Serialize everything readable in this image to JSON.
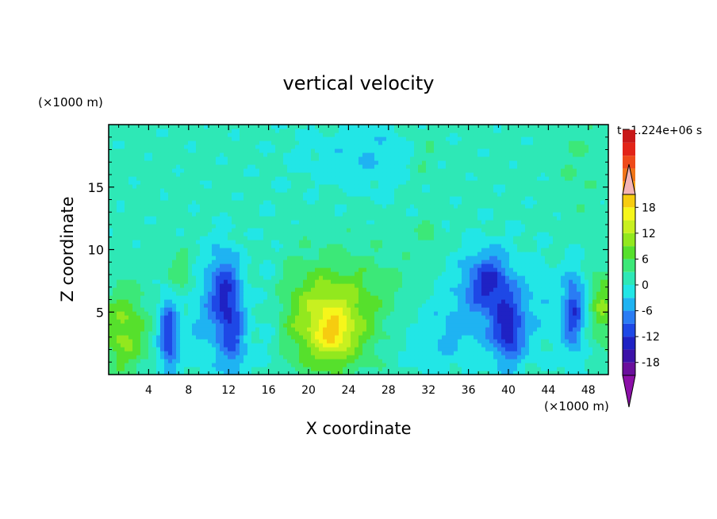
{
  "chart_data": {
    "type": "heatmap",
    "title": "vertical velocity",
    "xlabel": "X coordinate",
    "ylabel": "Z coordinate",
    "x_unit": "(×1000 m)",
    "y_unit": "(×1000 m)",
    "time_label": "t=1.224e+06 s",
    "xlim": [
      0,
      50
    ],
    "ylim": [
      0,
      20
    ],
    "x_ticks": [
      4,
      8,
      12,
      16,
      20,
      24,
      28,
      32,
      36,
      40,
      44,
      48
    ],
    "y_ticks": [
      5,
      10,
      15
    ],
    "colorbar": {
      "min": -21,
      "max": 21,
      "step": 3,
      "tick_values": [
        18,
        12,
        6,
        0,
        -6,
        -12,
        -18
      ],
      "colors": [
        "#6a0f9c",
        "#3c12a8",
        "#1f22c4",
        "#1e48e6",
        "#2a7cf4",
        "#1fb3f2",
        "#22e6e6",
        "#2ee8b6",
        "#3ce878",
        "#56e02c",
        "#92e81e",
        "#c8f020",
        "#f6f61a",
        "#f6cc10",
        "#f6a010",
        "#f07418",
        "#ee4a1a",
        "#e22418",
        "#c81818"
      ],
      "over_color": "#f4b4b4",
      "under_color": "#8c10a8"
    },
    "features": [
      {
        "x": 22,
        "z": 4,
        "sx": 3.0,
        "sz": 2.6,
        "value": 12
      },
      {
        "x": 22.5,
        "z": 3.2,
        "sx": 1.2,
        "sz": 1.2,
        "value": 6
      },
      {
        "x": 24,
        "z": 7,
        "sx": 6,
        "sz": 2.5,
        "value": 3
      },
      {
        "x": 1.5,
        "z": 3.5,
        "sx": 1.6,
        "sz": 2.4,
        "value": 9
      },
      {
        "x": 49.5,
        "z": 5.5,
        "sx": 0.9,
        "sz": 2,
        "value": 8
      },
      {
        "x": 7.2,
        "z": 8,
        "sx": 1.0,
        "sz": 1.5,
        "value": 5
      },
      {
        "x": 6.0,
        "z": 3.2,
        "sx": 0.7,
        "sz": 2.2,
        "value": -13
      },
      {
        "x": 11.8,
        "z": 6.5,
        "sx": 1.2,
        "sz": 2.4,
        "value": -12
      },
      {
        "x": 12.5,
        "z": 2.5,
        "sx": 1.0,
        "sz": 2.0,
        "value": -8
      },
      {
        "x": 9.5,
        "z": 5,
        "sx": 1.6,
        "sz": 3.5,
        "value": -4
      },
      {
        "x": 16,
        "z": 5,
        "sx": 1.0,
        "sz": 4.5,
        "value": -3
      },
      {
        "x": 38,
        "z": 7.5,
        "sx": 1.4,
        "sz": 1.6,
        "value": -10
      },
      {
        "x": 40,
        "z": 3.5,
        "sx": 1.1,
        "sz": 2.0,
        "value": -12
      },
      {
        "x": 37.5,
        "z": 6,
        "sx": 3.5,
        "sz": 3.0,
        "value": -5
      },
      {
        "x": 46.5,
        "z": 5,
        "sx": 0.8,
        "sz": 2.3,
        "value": -12
      },
      {
        "x": 33,
        "z": 3,
        "sx": 3.0,
        "sz": 2.0,
        "value": -3
      },
      {
        "x": 43,
        "z": 5,
        "sx": 1.5,
        "sz": 3.0,
        "value": -2
      },
      {
        "x": 27.5,
        "z": 17.5,
        "sx": 3.0,
        "sz": 2.0,
        "value": -3
      },
      {
        "x": 31.5,
        "z": 17.5,
        "sx": 1.0,
        "sz": 1.5,
        "value": 3
      },
      {
        "x": 32,
        "z": 11.5,
        "sx": 0.7,
        "sz": 0.8,
        "value": 4
      },
      {
        "x": 47,
        "z": 17,
        "sx": 1.5,
        "sz": 3.0,
        "value": 2
      },
      {
        "x": 22,
        "z": 17.5,
        "sx": 3.5,
        "sz": 2.0,
        "value": -2
      }
    ]
  }
}
